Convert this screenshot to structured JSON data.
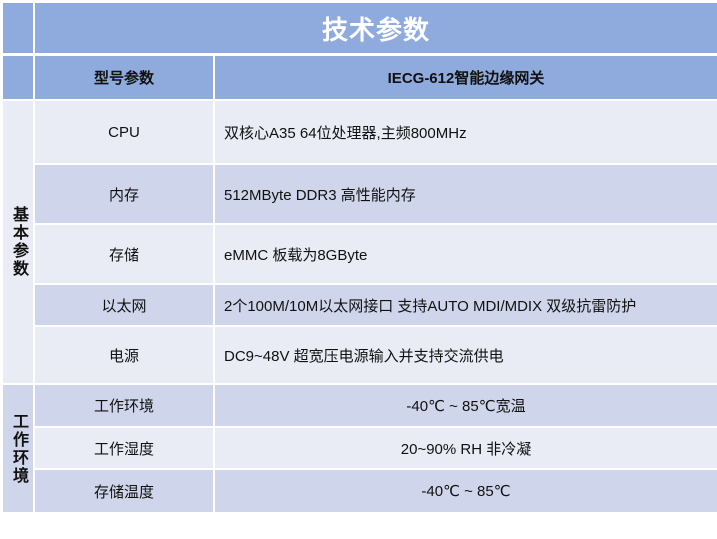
{
  "title": "技术参数",
  "header": {
    "param": "型号参数",
    "model": "IECG-612智能边缘网关"
  },
  "groups": [
    {
      "label": "基本参数",
      "rows": [
        {
          "name": "CPU",
          "value": "双核心A35 64位处理器,主频800MHz"
        },
        {
          "name": "内存",
          "value": "512MByte DDR3 高性能内存"
        },
        {
          "name": "存储",
          "value": "eMMC 板载为8GByte"
        },
        {
          "name": "以太网",
          "value": "2个100M/10M以太网接口 支持AUTO MDI/MDIX 双级抗雷防护"
        },
        {
          "name": "电源",
          "value": "DC9~48V 超宽压电源输入并支持交流供电"
        }
      ]
    },
    {
      "label": "工作环境",
      "rows": [
        {
          "name": "工作环境",
          "value": "-40℃ ~ 85℃宽温"
        },
        {
          "name": "工作湿度",
          "value": "20~90% RH 非冷凝"
        },
        {
          "name": "存储温度",
          "value": "-40℃ ~ 85℃"
        }
      ]
    }
  ],
  "colors": {
    "header": "#8faadc",
    "row_light": "#e9ebf5",
    "row_dark": "#cfd5ea"
  }
}
